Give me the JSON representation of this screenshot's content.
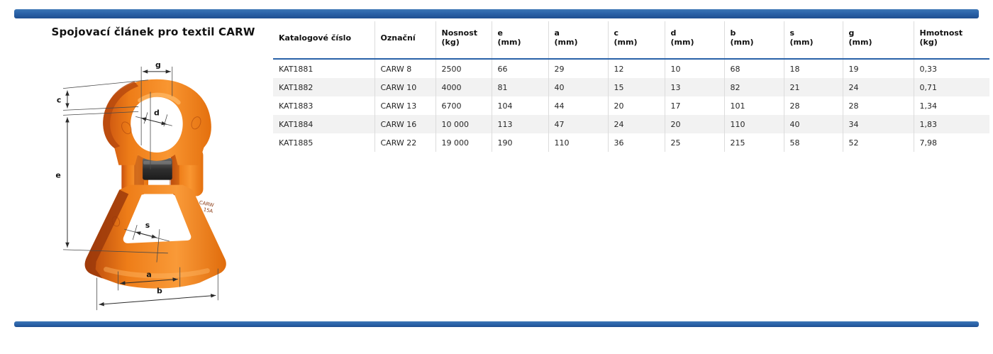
{
  "page": {
    "title": "Spojovací článek pro textil CARW"
  },
  "figure": {
    "description": "orange-forged-textile-connecting-link-with-dimension-arrows",
    "labels": {
      "g": "g",
      "c": "c",
      "d": "d",
      "e": "e",
      "s": "s",
      "a": "a",
      "b": "b"
    },
    "marking_line1": "CARW",
    "marking_line2": "15A",
    "colors": {
      "body": "#ee7d18",
      "shadow": "#b5450c",
      "highlight": "#ffb866",
      "pin": "#2f2f2f",
      "dimension": "#2b2b2b"
    }
  },
  "table": {
    "columns": [
      {
        "line1": "Katalogové číslo",
        "line2": ""
      },
      {
        "line1": "Označní",
        "line2": ""
      },
      {
        "line1": "Nosnost",
        "line2": "(kg)"
      },
      {
        "line1": "e",
        "line2": "(mm)"
      },
      {
        "line1": "a",
        "line2": "(mm)"
      },
      {
        "line1": "c",
        "line2": "(mm)"
      },
      {
        "line1": "d",
        "line2": "(mm)"
      },
      {
        "line1": "b",
        "line2": "(mm)"
      },
      {
        "line1": "s",
        "line2": "(mm)"
      },
      {
        "line1": "g",
        "line2": "(mm)"
      },
      {
        "line1": "Hmotnost",
        "line2": "(kg)"
      }
    ],
    "rows": [
      [
        "KAT1881",
        "CARW 8",
        "2500",
        "66",
        "29",
        "12",
        "10",
        "68",
        "18",
        "19",
        "0,33"
      ],
      [
        "KAT1882",
        "CARW 10",
        "4000",
        "81",
        "40",
        "15",
        "13",
        "82",
        "21",
        "24",
        "0,71"
      ],
      [
        "KAT1883",
        "CARW 13",
        "6700",
        "104",
        "44",
        "20",
        "17",
        "101",
        "28",
        "28",
        "1,34"
      ],
      [
        "KAT1884",
        "CARW 16",
        "10 000",
        "113",
        "47",
        "24",
        "20",
        "110",
        "40",
        "34",
        "1,83"
      ],
      [
        "KAT1885",
        "CARW 22",
        "19 000",
        "190",
        "110",
        "36",
        "25",
        "215",
        "58",
        "52",
        "7,98"
      ]
    ]
  },
  "colors": {
    "accent_blue": "#2a62a8",
    "alt_row": "#f2f2f2",
    "divider": "#dcdcdc"
  }
}
